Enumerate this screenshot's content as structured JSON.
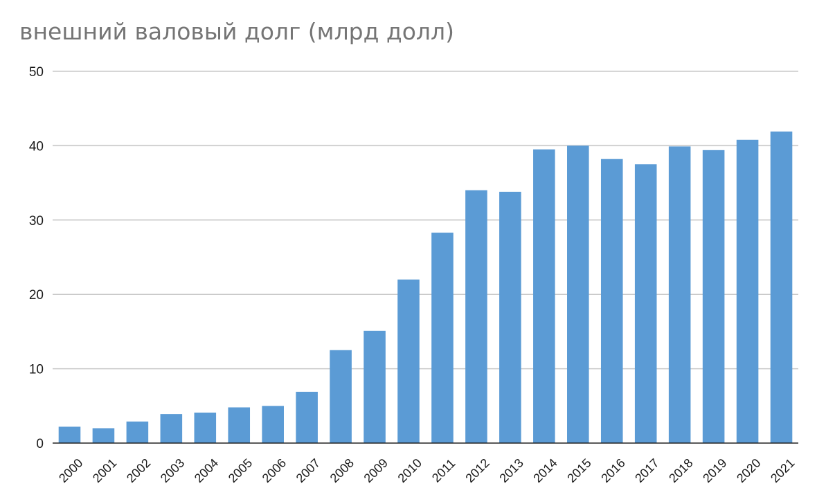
{
  "chart_data": {
    "type": "bar",
    "title": "внешний валовый долг (млрд долл)",
    "xlabel": "",
    "ylabel": "",
    "categories": [
      "2000",
      "2001",
      "2002",
      "2003",
      "2004",
      "2005",
      "2006",
      "2007",
      "2008",
      "2009",
      "2010",
      "2011",
      "2012",
      "2013",
      "2014",
      "2015",
      "2016",
      "2017",
      "2018",
      "2019",
      "2020",
      "2021"
    ],
    "values": [
      2.2,
      2.0,
      2.9,
      3.9,
      4.1,
      4.8,
      5.0,
      6.9,
      12.5,
      15.1,
      22.0,
      28.3,
      34.0,
      33.8,
      39.5,
      40.0,
      38.2,
      37.5,
      39.9,
      39.4,
      40.8,
      41.9
    ],
    "ylim": [
      0,
      50
    ],
    "yticks": [
      0,
      10,
      20,
      30,
      40,
      50
    ],
    "grid": true,
    "legend": "none",
    "bar_color": "#5b9bd5"
  }
}
